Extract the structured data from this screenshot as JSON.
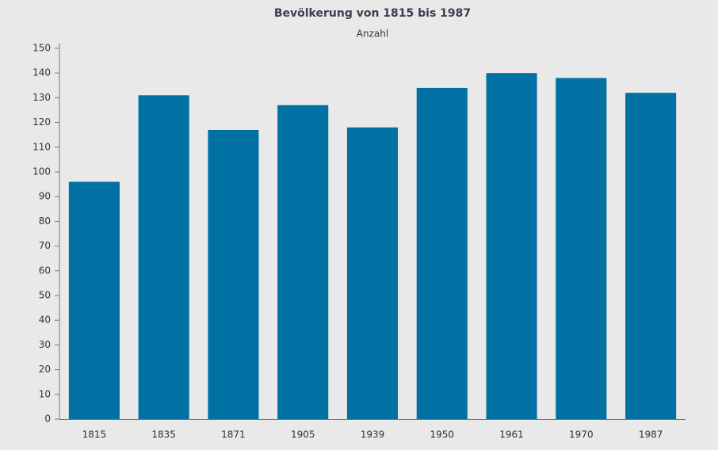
{
  "chart_data": {
    "type": "bar",
    "title": "Bevölkerung von 1815 bis 1987",
    "subtitle": "Anzahl",
    "categories": [
      "1815",
      "1835",
      "1871",
      "1905",
      "1939",
      "1950",
      "1961",
      "1970",
      "1987"
    ],
    "values": [
      96,
      131,
      117,
      127,
      118,
      134,
      140,
      138,
      132
    ],
    "color": "#0071a2",
    "ylim": [
      0,
      150
    ],
    "yticks": [
      0,
      10,
      20,
      30,
      40,
      50,
      60,
      70,
      80,
      90,
      100,
      110,
      120,
      130,
      140,
      150
    ],
    "grid": false
  }
}
